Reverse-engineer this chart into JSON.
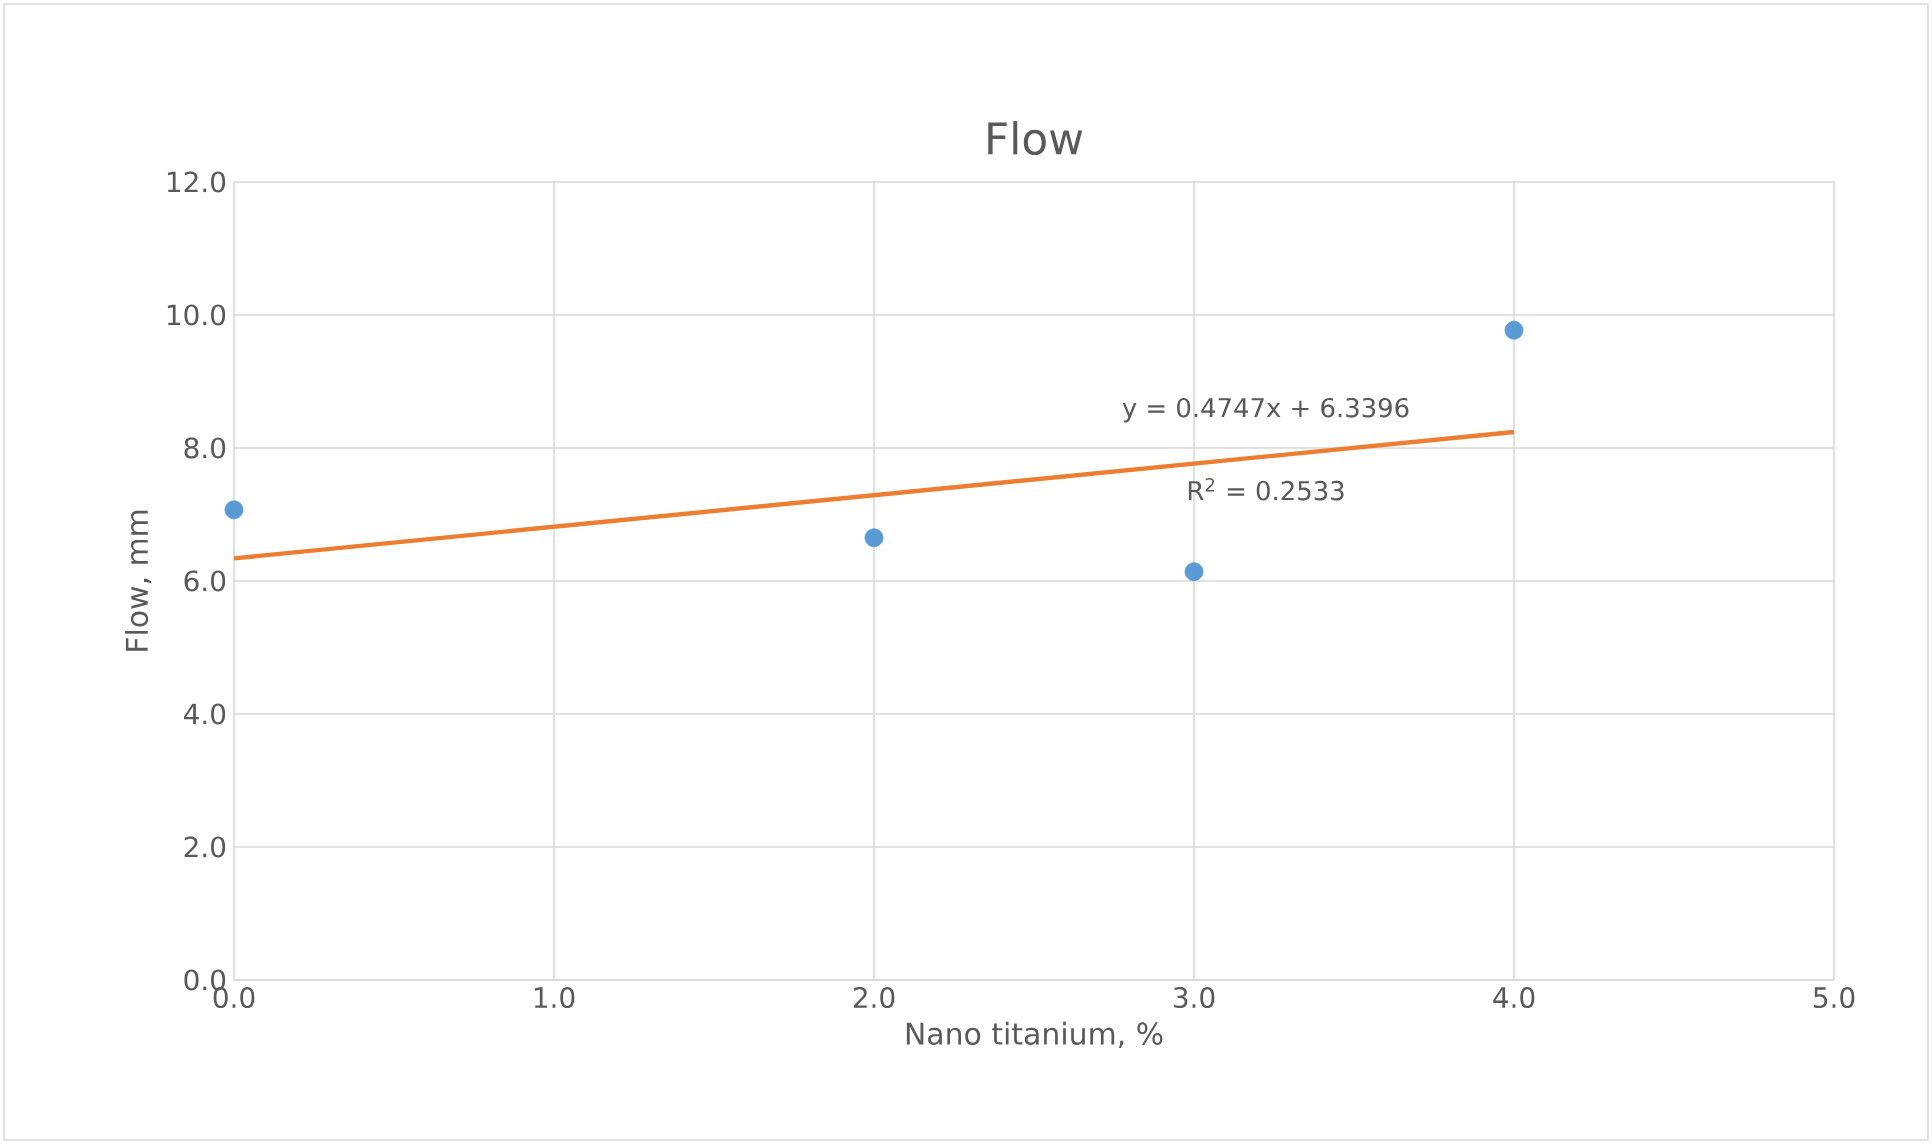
{
  "chart_data": {
    "type": "scatter",
    "title": "Flow",
    "xlabel": "Nano titanium, %",
    "ylabel": "Flow, mm",
    "series": [
      {
        "color": "#5b9bd5",
        "x": [
          0,
          2,
          3,
          4
        ],
        "values": [
          7.07,
          6.65,
          6.14,
          9.77
        ],
        "marker": "circle"
      },
      {
        "type": "line",
        "color": "#ed7d31",
        "x": [
          0,
          4
        ],
        "values": [
          6.34,
          8.24
        ],
        "marker": "none"
      }
    ],
    "xlim": [
      0,
      5
    ],
    "ylim": [
      0,
      12
    ],
    "xticks": [
      {
        "value": 0,
        "label": "0.0"
      },
      {
        "value": 1,
        "label": "1.0"
      },
      {
        "value": 2,
        "label": "2.0"
      },
      {
        "value": 3,
        "label": "3.0"
      },
      {
        "value": 4,
        "label": "4.0"
      },
      {
        "value": 5,
        "label": "5.0"
      }
    ],
    "yticks": [
      {
        "value": 0,
        "label": "0.0"
      },
      {
        "value": 2,
        "label": "2.0"
      },
      {
        "value": 4,
        "label": "4.0"
      },
      {
        "value": 6,
        "label": "6.0"
      },
      {
        "value": 8,
        "label": "8.0"
      },
      {
        "value": 10,
        "label": "10.0"
      },
      {
        "value": 12,
        "label": "12.0"
      }
    ],
    "grid": true,
    "annotations": [
      "y = 0.4747x + 6.3396",
      "R$^{2}$ = 0.2533"
    ]
  }
}
